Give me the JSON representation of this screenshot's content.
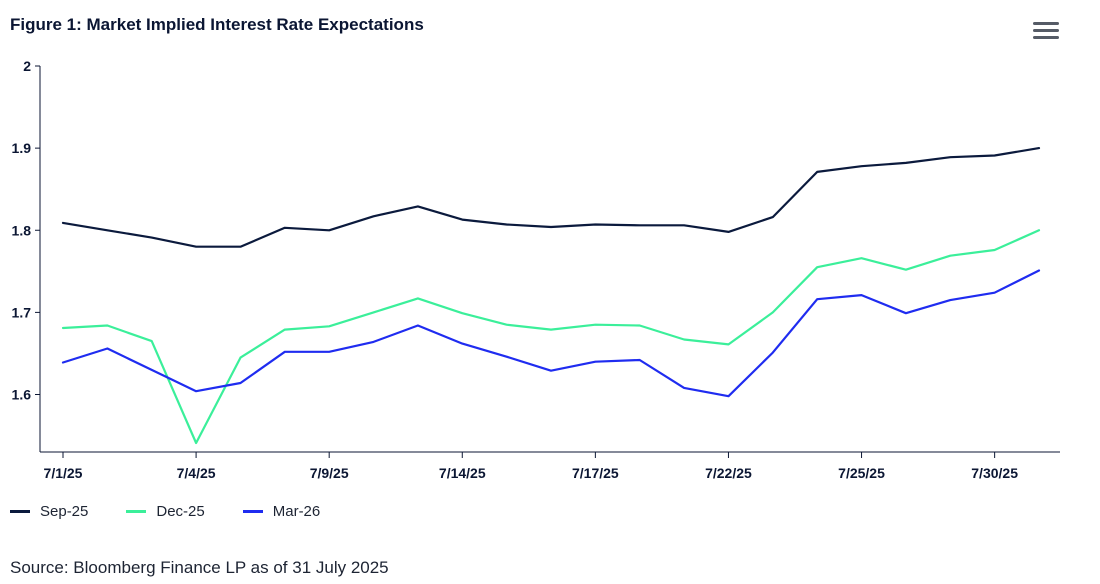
{
  "header": {
    "title": "Figure 1: Market Implied Interest Rate Expectations",
    "menu_icon": "hamburger-menu-icon"
  },
  "footer": {
    "source": "Source: Bloomberg Finance LP as of 31 July 2025"
  },
  "chart_data": {
    "type": "line",
    "title": "Figure 1: Market Implied Interest Rate Expectations",
    "xlabel": "",
    "ylabel": "",
    "x": [
      "7/1/25",
      "7/2/25",
      "7/3/25",
      "7/4/25",
      "7/7/25",
      "7/8/25",
      "7/9/25",
      "7/10/25",
      "7/11/25",
      "7/14/25",
      "7/15/25",
      "7/16/25",
      "7/17/25",
      "7/18/25",
      "7/21/25",
      "7/22/25",
      "7/23/25",
      "7/24/25",
      "7/25/25",
      "7/28/25",
      "7/29/25",
      "7/30/25",
      "7/31/25"
    ],
    "x_tick_labels": [
      "7/1/25",
      "7/4/25",
      "7/9/25",
      "7/14/25",
      "7/17/25",
      "7/22/25",
      "7/25/25",
      "7/30/25"
    ],
    "x_tick_indices": [
      0,
      3,
      6,
      9,
      12,
      15,
      18,
      21
    ],
    "ylim": [
      1.53,
      2.0
    ],
    "y_ticks": [
      1.6,
      1.7,
      1.8,
      1.9,
      2
    ],
    "y_tick_labels": [
      "1.6",
      "1.7",
      "1.8",
      "1.9",
      "2"
    ],
    "grid": false,
    "legend_position": "bottom-left",
    "series": [
      {
        "name": "Sep-25",
        "color": "#0b1a3d",
        "values": [
          1.809,
          1.8,
          1.791,
          1.78,
          1.78,
          1.803,
          1.8,
          1.817,
          1.829,
          1.813,
          1.807,
          1.804,
          1.807,
          1.806,
          1.806,
          1.798,
          1.816,
          1.871,
          1.878,
          1.882,
          1.889,
          1.891,
          1.9
        ]
      },
      {
        "name": "Dec-25",
        "color": "#3bef9a",
        "values": [
          1.681,
          1.684,
          1.665,
          1.541,
          1.645,
          1.679,
          1.683,
          1.7,
          1.717,
          1.699,
          1.685,
          1.679,
          1.685,
          1.684,
          1.667,
          1.661,
          1.7,
          1.755,
          1.766,
          1.752,
          1.769,
          1.776,
          1.8
        ]
      },
      {
        "name": "Mar-26",
        "color": "#1f2cf0",
        "values": [
          1.639,
          1.656,
          1.63,
          1.604,
          1.614,
          1.652,
          1.652,
          1.664,
          1.684,
          1.662,
          1.646,
          1.629,
          1.64,
          1.642,
          1.608,
          1.598,
          1.651,
          1.716,
          1.721,
          1.699,
          1.715,
          1.724,
          1.751
        ]
      }
    ]
  }
}
